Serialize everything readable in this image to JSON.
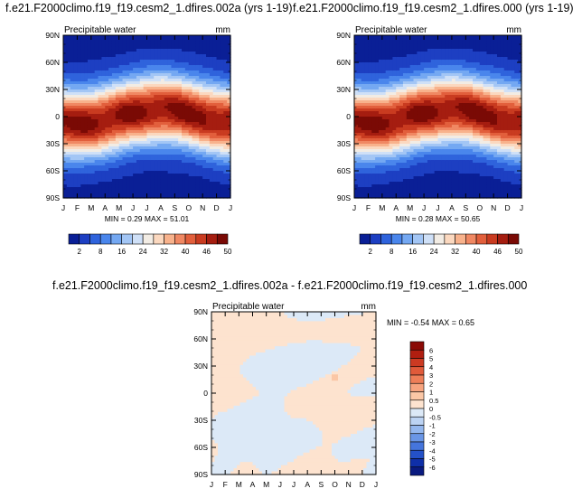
{
  "panels": {
    "top_left": {
      "title": "f.e21.F2000climo.f19_f19.cesm2_1.dfires.002a (yrs 1-19)",
      "variable": "Precipitable water",
      "units": "mm",
      "minmax": "MIN =   0.29 MAX =  51.01"
    },
    "top_right": {
      "title": "f.e21.F2000climo.f19_f19.cesm2_1.dfires.000 (yrs 1-19)",
      "variable": "Precipitable water",
      "units": "mm",
      "minmax": "MIN =   0.28 MAX =  50.65"
    },
    "bottom": {
      "title": "f.e21.F2000climo.f19_f19.cesm2_1.dfires.002a - f.e21.F2000climo.f19_f19.cesm2_1.dfires.000",
      "variable": "Precipitable water",
      "units": "mm",
      "minmax": "MIN =  -0.54 MAX =   0.65"
    }
  },
  "chart_data": [
    {
      "type": "heatmap",
      "title": "f.e21.F2000climo.f19_f19.cesm2_1.dfires.002a (yrs 1-19)",
      "subtitle": "Precipitable water",
      "units": "mm",
      "x_ticks": [
        "J",
        "F",
        "M",
        "A",
        "M",
        "J",
        "J",
        "A",
        "S",
        "O",
        "N",
        "D",
        "J"
      ],
      "y_ticks": [
        "90N",
        "60N",
        "30N",
        "0",
        "30S",
        "60S",
        "90S"
      ],
      "ylim": [
        -90,
        90
      ],
      "colorbar_levels": [
        2,
        8,
        16,
        24,
        32,
        40,
        46,
        50
      ],
      "colorbar_colors": [
        "#0a1f96",
        "#1d3fc2",
        "#2f63dc",
        "#4a86ec",
        "#74a8f2",
        "#a3c6f5",
        "#cfe0f7",
        "#f2ece4",
        "#fbd8bf",
        "#f8b28c",
        "#f08863",
        "#e25f3c",
        "#c93b20",
        "#a51d10",
        "#7a0a05"
      ],
      "min": 0.29,
      "max": 51.01
    },
    {
      "type": "heatmap",
      "title": "f.e21.F2000climo.f19_f19.cesm2_1.dfires.000 (yrs 1-19)",
      "subtitle": "Precipitable water",
      "units": "mm",
      "x_ticks": [
        "J",
        "F",
        "M",
        "A",
        "M",
        "J",
        "J",
        "A",
        "S",
        "O",
        "N",
        "D",
        "J"
      ],
      "y_ticks": [
        "90N",
        "60N",
        "30N",
        "0",
        "30S",
        "60S",
        "90S"
      ],
      "ylim": [
        -90,
        90
      ],
      "colorbar_levels": [
        2,
        8,
        16,
        24,
        32,
        40,
        46,
        50
      ],
      "min": 0.28,
      "max": 50.65
    },
    {
      "type": "heatmap",
      "title": "f.e21.F2000climo.f19_f19.cesm2_1.dfires.002a - f.e21.F2000climo.f19_f19.cesm2_1.dfires.000",
      "subtitle": "Precipitable water",
      "units": "mm",
      "x_ticks": [
        "J",
        "F",
        "M",
        "A",
        "M",
        "J",
        "J",
        "A",
        "S",
        "O",
        "N",
        "D",
        "J"
      ],
      "y_ticks": [
        "90N",
        "60N",
        "30N",
        "0",
        "30S",
        "60S",
        "90S"
      ],
      "ylim": [
        -90,
        90
      ],
      "colorbar_levels": [
        "6",
        "5",
        "4",
        "3",
        "2",
        "1",
        "0.5",
        "0",
        "-0.5",
        "-1",
        "-2",
        "-3",
        "-4",
        "-5",
        "-6"
      ],
      "colorbar_colors": [
        "#8b0a05",
        "#b01e10",
        "#cc3a22",
        "#e05a3a",
        "#ee7e58",
        "#f7a47f",
        "#fbc7a6",
        "#fde3cf",
        "#dce9f7",
        "#bcd3f3",
        "#94b7ee",
        "#6a96e6",
        "#4575dc",
        "#2451c8",
        "#0f2fa8",
        "#0a1a80"
      ],
      "min": -0.54,
      "max": 0.65
    }
  ]
}
